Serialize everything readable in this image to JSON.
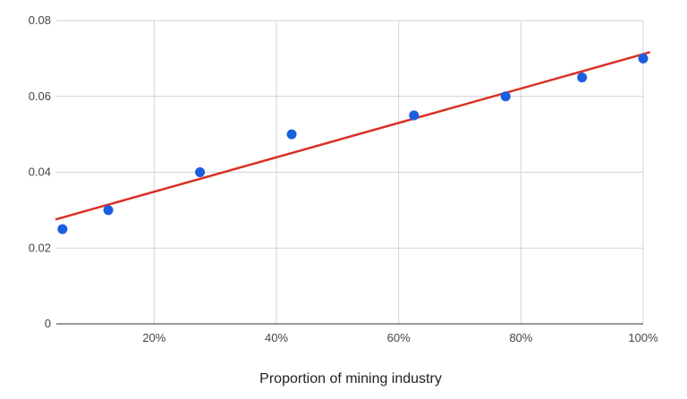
{
  "chart_data": {
    "type": "scatter",
    "title": "",
    "xlabel": "Proportion of mining industry",
    "ylabel": "",
    "x_format": "percent",
    "xlim": [
      0.04,
      1.0
    ],
    "ylim": [
      0,
      0.08
    ],
    "x_ticks": [
      0.2,
      0.4,
      0.6,
      0.8,
      1.0
    ],
    "x_tick_labels": [
      "20%",
      "40%",
      "60%",
      "80%",
      "100%"
    ],
    "y_ticks": [
      0,
      0.02,
      0.04,
      0.06,
      0.08
    ],
    "y_tick_labels": [
      "0",
      "0.02",
      "0.04",
      "0.06",
      "0.08"
    ],
    "grid": true,
    "legend": "none",
    "series": [
      {
        "x": [
          0.05,
          0.125,
          0.275,
          0.425,
          0.625,
          0.775,
          0.9,
          1.0
        ],
        "y": [
          0.025,
          0.03,
          0.04,
          0.05,
          0.055,
          0.06,
          0.065,
          0.07
        ],
        "color": "#1a5fe0"
      }
    ],
    "trendline": {
      "type": "linear",
      "x": [
        0.04,
        1.01
      ],
      "y": [
        0.0276,
        0.0716
      ],
      "color": "#d93025"
    }
  }
}
